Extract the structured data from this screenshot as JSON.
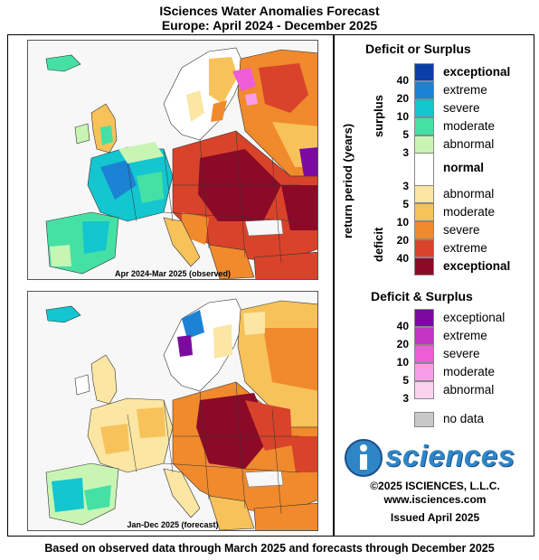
{
  "header": {
    "title_line1": "ISciences Water Anomalies Forecast",
    "title_line2": "Europe: April 2024 - December 2025"
  },
  "maps": [
    {
      "caption": "Apr 2024-Mar 2025 (observed)"
    },
    {
      "caption": "Jan-Dec 2025 (forecast)"
    }
  ],
  "legend": {
    "deficit_surplus": {
      "heading": "Deficit or Surplus",
      "axis_label": "return period (years)",
      "surplus_label": "surplus",
      "deficit_label": "deficit",
      "categories": [
        {
          "label": "exceptional",
          "return_period": "40",
          "color": "#0a3fa8",
          "bold": true
        },
        {
          "label": "extreme",
          "return_period": "20",
          "color": "#1c82d4",
          "bold": false
        },
        {
          "label": "severe",
          "return_period": "10",
          "color": "#13c6cf",
          "bold": false
        },
        {
          "label": "moderate",
          "return_period": "5",
          "color": "#45e0a4",
          "bold": false
        },
        {
          "label": "abnormal",
          "return_period": "3",
          "color": "#c8f5b4",
          "bold": false
        },
        {
          "label": "normal",
          "return_period": "",
          "color": "#ffffff",
          "bold": true
        },
        {
          "label": "abnormal",
          "return_period": "3",
          "color": "#fbe6a3",
          "bold": false
        },
        {
          "label": "moderate",
          "return_period": "5",
          "color": "#f8c25a",
          "bold": false
        },
        {
          "label": "severe",
          "return_period": "10",
          "color": "#f08a2c",
          "bold": false
        },
        {
          "label": "extreme",
          "return_period": "20",
          "color": "#d8432a",
          "bold": false
        },
        {
          "label": "exceptional",
          "return_period": "40",
          "color": "#8c0a28",
          "bold": true
        }
      ]
    },
    "both": {
      "heading": "Deficit & Surplus",
      "categories": [
        {
          "label": "exceptional",
          "return_period": "40",
          "color": "#7c0aa0"
        },
        {
          "label": "extreme",
          "return_period": "20",
          "color": "#c234c2"
        },
        {
          "label": "severe",
          "return_period": "10",
          "color": "#ee5cd6"
        },
        {
          "label": "moderate",
          "return_period": "5",
          "color": "#f79ce6"
        },
        {
          "label": "abnormal",
          "return_period": "3",
          "color": "#fbd2ef"
        }
      ]
    },
    "no_data": {
      "label": "no data",
      "color": "#c8c8c8"
    }
  },
  "branding": {
    "logo_letter": "i",
    "logo_word": "sciences",
    "copyright": "©2025 ISCIENCES, L.L.C.",
    "website": "www.isciences.com",
    "issued": "Issued April 2025"
  },
  "footer": {
    "note": "Based on observed data through March 2025 and forecasts through December 2025"
  }
}
